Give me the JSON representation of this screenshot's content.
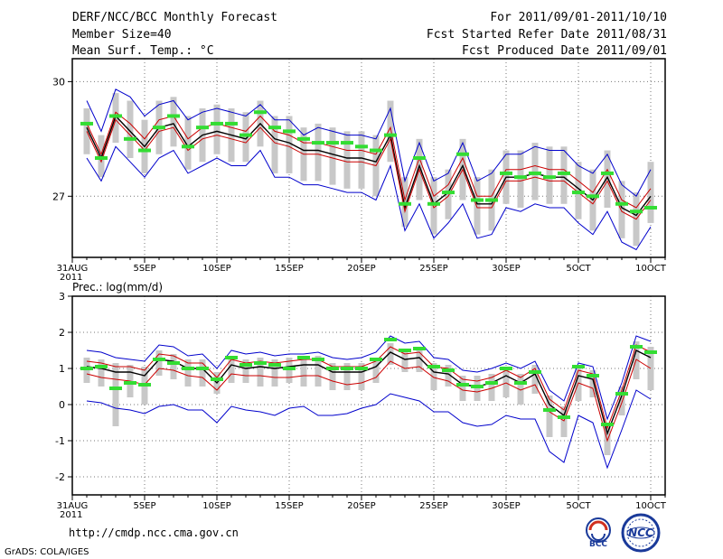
{
  "header": {
    "title": "DERF/NCC/BCC Monthly Forecast",
    "member_size": "Member Size=40",
    "variable": "Mean Surf. Temp.: °C",
    "forecast_period": "For 2011/09/01-2011/10/10",
    "started_refer": "Fcst Started Refer Date 2011/08/31",
    "produced": "Fcst Produced Date 2011/09/01"
  },
  "footer": {
    "url": "http://cmdp.ncc.cma.gov.cn",
    "grads": "GrADS: COLA/IGES",
    "logo_bcc": "BCC",
    "logo_ncc": "NCC"
  },
  "colors": {
    "envelope": "#0000cc",
    "spread": "#cc0000",
    "mean": "#000000",
    "bar": "#c8c8c8",
    "observed": "#33dd33",
    "grid": "#777777"
  },
  "chart_data": [
    {
      "type": "line",
      "panel": "Mean Surf. Temp.",
      "title": "",
      "ylabel": "",
      "ylim": [
        25.4,
        30.6
      ],
      "yticks": [
        27,
        30
      ],
      "xlim": [
        0,
        41
      ],
      "xticks": [
        {
          "x": 0,
          "label": "31AUG"
        },
        {
          "x": 5,
          "label": "5SEP"
        },
        {
          "x": 10,
          "label": "10SEP"
        },
        {
          "x": 15,
          "label": "15SEP"
        },
        {
          "x": 20,
          "label": "20SEP"
        },
        {
          "x": 25,
          "label": "25SEP"
        },
        {
          "x": 30,
          "label": "30SEP"
        },
        {
          "x": 35,
          "label": "5OCT"
        },
        {
          "x": 40,
          "label": "10OCT"
        }
      ],
      "year_label": "2011",
      "x": [
        1,
        2,
        3,
        4,
        5,
        6,
        7,
        8,
        9,
        10,
        11,
        12,
        13,
        14,
        15,
        16,
        17,
        18,
        19,
        20,
        21,
        22,
        23,
        24,
        25,
        26,
        27,
        28,
        29,
        30,
        31,
        32,
        33,
        34,
        35,
        36,
        37,
        38,
        39,
        40
      ],
      "series": [
        {
          "name": "ensemble mean",
          "role": "mean",
          "values": [
            28.8,
            28.0,
            29.1,
            28.7,
            28.3,
            28.8,
            28.9,
            28.3,
            28.6,
            28.7,
            28.6,
            28.5,
            28.9,
            28.5,
            28.4,
            28.2,
            28.2,
            28.1,
            28.0,
            28.0,
            27.9,
            28.6,
            26.7,
            27.8,
            26.8,
            27.1,
            27.8,
            26.8,
            26.8,
            27.5,
            27.5,
            27.6,
            27.5,
            27.5,
            27.2,
            26.9,
            27.5,
            26.7,
            26.5,
            27.0
          ]
        },
        {
          "name": "spread upper",
          "role": "spread",
          "values": [
            28.9,
            28.1,
            29.2,
            28.9,
            28.5,
            29.0,
            29.1,
            28.5,
            28.8,
            28.9,
            28.8,
            28.7,
            29.1,
            28.7,
            28.6,
            28.4,
            28.4,
            28.3,
            28.2,
            28.2,
            28.1,
            28.8,
            26.9,
            28.0,
            27.0,
            27.3,
            28.0,
            27.0,
            27.0,
            27.7,
            27.7,
            27.8,
            27.7,
            27.7,
            27.4,
            27.1,
            27.7,
            26.9,
            26.7,
            27.2
          ]
        },
        {
          "name": "spread lower",
          "role": "spread",
          "values": [
            28.7,
            27.9,
            29.0,
            28.6,
            28.2,
            28.7,
            28.8,
            28.2,
            28.5,
            28.6,
            28.5,
            28.4,
            28.8,
            28.4,
            28.3,
            28.1,
            28.1,
            28.0,
            27.9,
            27.9,
            27.8,
            28.5,
            26.6,
            27.7,
            26.7,
            27.0,
            27.7,
            26.7,
            26.7,
            27.4,
            27.4,
            27.5,
            27.4,
            27.4,
            27.1,
            26.8,
            27.4,
            26.6,
            26.4,
            26.9
          ]
        },
        {
          "name": "envelope upper",
          "role": "envelope",
          "values": [
            29.5,
            28.7,
            29.8,
            29.6,
            29.1,
            29.4,
            29.5,
            29.0,
            29.2,
            29.3,
            29.2,
            29.1,
            29.4,
            29.0,
            29.0,
            28.6,
            28.8,
            28.7,
            28.6,
            28.6,
            28.5,
            29.3,
            27.4,
            28.4,
            27.4,
            27.6,
            28.4,
            27.4,
            27.6,
            28.1,
            28.1,
            28.3,
            28.2,
            28.2,
            27.8,
            27.6,
            28.1,
            27.3,
            27.0,
            27.7
          ]
        },
        {
          "name": "envelope lower",
          "role": "envelope",
          "values": [
            28.0,
            27.4,
            28.3,
            27.9,
            27.5,
            28.0,
            28.2,
            27.6,
            27.8,
            28.0,
            27.8,
            27.8,
            28.2,
            27.5,
            27.5,
            27.3,
            27.3,
            27.2,
            27.1,
            27.1,
            26.9,
            27.8,
            26.1,
            26.8,
            25.9,
            26.3,
            26.8,
            25.9,
            26.0,
            26.7,
            26.6,
            26.8,
            26.7,
            26.7,
            26.3,
            26.0,
            26.6,
            25.8,
            25.6,
            26.2
          ]
        }
      ],
      "bars": {
        "name": "ensemble range",
        "low": [
          28.1,
          27.5,
          28.4,
          28.0,
          27.6,
          28.1,
          28.3,
          27.7,
          27.9,
          28.1,
          27.9,
          27.9,
          28.3,
          27.6,
          27.6,
          27.4,
          27.4,
          27.3,
          27.2,
          27.2,
          27.0,
          27.9,
          26.2,
          26.9,
          26.0,
          26.4,
          26.9,
          26.0,
          26.1,
          26.8,
          26.7,
          26.9,
          26.8,
          26.8,
          26.4,
          26.1,
          26.7,
          25.9,
          25.7,
          26.3
        ],
        "high": [
          29.3,
          28.6,
          29.7,
          29.5,
          29.0,
          29.5,
          29.6,
          29.1,
          29.3,
          29.4,
          29.3,
          29.2,
          29.5,
          29.1,
          29.1,
          28.8,
          28.9,
          28.8,
          28.7,
          28.7,
          28.6,
          29.5,
          27.5,
          28.5,
          27.5,
          27.7,
          28.5,
          27.5,
          27.7,
          28.2,
          28.2,
          28.4,
          28.3,
          28.3,
          27.9,
          27.7,
          28.2,
          27.4,
          27.1,
          27.9
        ]
      },
      "observed": {
        "name": "observed",
        "values": [
          28.9,
          28.0,
          29.1,
          28.5,
          28.2,
          28.8,
          29.1,
          28.3,
          28.8,
          28.9,
          28.9,
          28.6,
          29.2,
          28.8,
          28.7,
          28.5,
          28.4,
          28.4,
          28.4,
          28.3,
          28.2,
          28.6,
          26.8,
          28.0,
          26.8,
          27.1,
          28.1,
          26.9,
          26.9,
          27.6,
          27.5,
          27.6,
          27.5,
          27.6,
          27.1,
          27.0,
          27.6,
          26.8,
          26.6,
          26.7
        ]
      }
    },
    {
      "type": "line",
      "panel": "Prec.: log(mm/d)",
      "title": "Prec.: log(mm/d)",
      "ylabel": "",
      "ylim": [
        -2.5,
        3
      ],
      "yticks": [
        -2,
        -1,
        0,
        1,
        2,
        3
      ],
      "xlim": [
        0,
        41
      ],
      "xticks": [
        {
          "x": 0,
          "label": "31AUG"
        },
        {
          "x": 5,
          "label": "5SEP"
        },
        {
          "x": 10,
          "label": "10SEP"
        },
        {
          "x": 15,
          "label": "15SEP"
        },
        {
          "x": 20,
          "label": "20SEP"
        },
        {
          "x": 25,
          "label": "25SEP"
        },
        {
          "x": 30,
          "label": "30SEP"
        },
        {
          "x": 35,
          "label": "5OCT"
        },
        {
          "x": 40,
          "label": "10OCT"
        }
      ],
      "year_label": "2011",
      "x": [
        1,
        2,
        3,
        4,
        5,
        6,
        7,
        8,
        9,
        10,
        11,
        12,
        13,
        14,
        15,
        16,
        17,
        18,
        19,
        20,
        21,
        22,
        23,
        24,
        25,
        26,
        27,
        28,
        29,
        30,
        31,
        32,
        33,
        34,
        35,
        36,
        37,
        38,
        39,
        40
      ],
      "series": [
        {
          "name": "ensemble mean",
          "role": "mean",
          "values": [
            1.05,
            1.0,
            0.9,
            0.9,
            0.8,
            1.25,
            1.2,
            1.0,
            1.0,
            0.6,
            1.1,
            1.0,
            1.05,
            1.0,
            1.05,
            1.1,
            1.1,
            0.9,
            0.9,
            0.9,
            1.05,
            1.45,
            1.25,
            1.3,
            0.9,
            0.85,
            0.55,
            0.5,
            0.6,
            0.8,
            0.6,
            0.85,
            0.0,
            -0.3,
            0.8,
            0.7,
            -0.8,
            0.25,
            1.5,
            1.3
          ]
        },
        {
          "name": "spread upper",
          "role": "spread",
          "values": [
            1.2,
            1.15,
            1.05,
            1.05,
            0.95,
            1.4,
            1.35,
            1.15,
            1.15,
            0.75,
            1.25,
            1.15,
            1.2,
            1.15,
            1.2,
            1.25,
            1.25,
            1.05,
            1.05,
            1.05,
            1.2,
            1.6,
            1.4,
            1.45,
            1.05,
            1.0,
            0.7,
            0.65,
            0.75,
            0.95,
            0.75,
            1.0,
            0.15,
            -0.15,
            0.95,
            0.85,
            -0.65,
            0.4,
            1.65,
            1.45
          ]
        },
        {
          "name": "spread lower",
          "role": "spread",
          "values": [
            0.85,
            0.75,
            0.7,
            0.65,
            0.55,
            1.0,
            0.95,
            0.8,
            0.75,
            0.4,
            0.85,
            0.8,
            0.8,
            0.75,
            0.75,
            0.8,
            0.8,
            0.65,
            0.55,
            0.6,
            0.75,
            1.2,
            1.0,
            1.05,
            0.75,
            0.65,
            0.4,
            0.35,
            0.45,
            0.6,
            0.4,
            0.55,
            -0.2,
            -0.45,
            0.6,
            0.45,
            -1.0,
            0.05,
            1.25,
            1.0
          ]
        },
        {
          "name": "envelope upper",
          "role": "envelope",
          "values": [
            1.5,
            1.45,
            1.3,
            1.25,
            1.2,
            1.65,
            1.6,
            1.35,
            1.4,
            1.0,
            1.5,
            1.4,
            1.45,
            1.35,
            1.4,
            1.4,
            1.45,
            1.3,
            1.25,
            1.3,
            1.45,
            1.9,
            1.7,
            1.75,
            1.3,
            1.25,
            0.95,
            0.9,
            1.0,
            1.15,
            1.0,
            1.2,
            0.4,
            0.1,
            1.15,
            1.05,
            -0.4,
            0.6,
            1.9,
            1.75
          ]
        },
        {
          "name": "envelope lower",
          "role": "envelope",
          "values": [
            0.1,
            0.05,
            -0.1,
            -0.15,
            -0.25,
            -0.05,
            0.0,
            -0.15,
            -0.15,
            -0.5,
            -0.05,
            -0.15,
            -0.2,
            -0.3,
            -0.1,
            -0.05,
            -0.3,
            -0.3,
            -0.25,
            -0.1,
            0.0,
            0.3,
            0.2,
            0.1,
            -0.2,
            -0.2,
            -0.5,
            -0.6,
            -0.55,
            -0.3,
            -0.4,
            -0.4,
            -1.3,
            -1.6,
            -0.3,
            -0.5,
            -1.75,
            -0.7,
            0.4,
            0.15
          ]
        },
        {
          "name": "observed",
          "role": "observed",
          "values": [
            1.0,
            1.05,
            0.45,
            0.6,
            0.55,
            1.25,
            1.15,
            1.0,
            1.0,
            0.7,
            1.3,
            1.1,
            1.15,
            1.1,
            1.0,
            1.3,
            1.25,
            1.0,
            1.0,
            1.0,
            1.25,
            1.8,
            1.5,
            1.55,
            1.05,
            0.95,
            0.55,
            0.5,
            0.6,
            1.0,
            0.6,
            0.9,
            -0.15,
            -0.35,
            1.05,
            0.8,
            -0.55,
            0.3,
            1.6,
            1.45
          ]
        }
      ],
      "bars": {
        "name": "ensemble range",
        "low": [
          0.6,
          0.5,
          -0.6,
          0.2,
          0.0,
          0.8,
          0.7,
          0.5,
          0.5,
          0.3,
          0.6,
          0.6,
          0.5,
          0.5,
          0.6,
          0.5,
          0.5,
          0.4,
          0.4,
          0.4,
          0.6,
          1.1,
          0.9,
          0.9,
          0.4,
          0.5,
          0.1,
          0.1,
          0.1,
          0.2,
          0.0,
          0.3,
          -0.9,
          -0.9,
          0.1,
          0.2,
          -1.4,
          -0.3,
          0.7,
          0.4
        ],
        "high": [
          1.3,
          1.25,
          1.15,
          1.1,
          1.05,
          1.5,
          1.4,
          1.25,
          1.25,
          0.9,
          1.35,
          1.25,
          1.3,
          1.25,
          1.3,
          1.3,
          1.35,
          1.15,
          1.15,
          1.15,
          1.3,
          1.7,
          1.5,
          1.6,
          1.15,
          1.1,
          0.8,
          0.8,
          0.85,
          1.05,
          0.85,
          1.1,
          0.25,
          -0.05,
          1.05,
          0.95,
          -0.5,
          0.5,
          1.75,
          1.6
        ]
      }
    }
  ]
}
